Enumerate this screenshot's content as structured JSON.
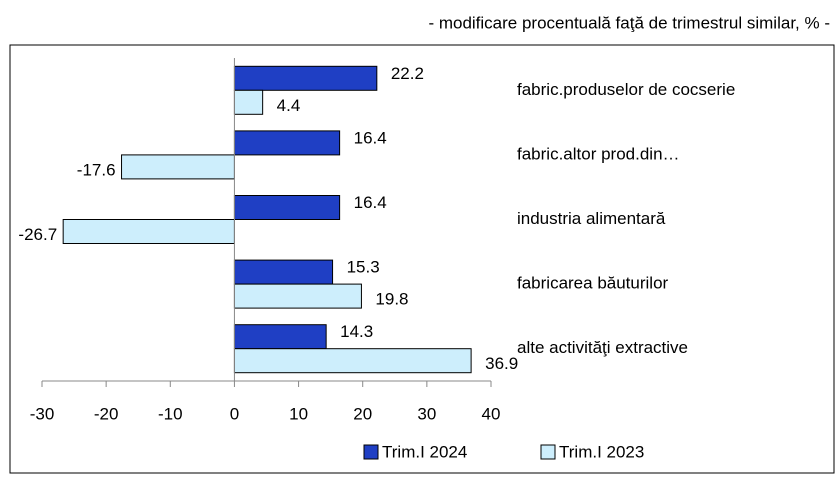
{
  "chart_data": {
    "type": "hbar",
    "subtitle": "- modificare procentuală faţă de trimestrul similar, % -",
    "categories": [
      "fabric.produselor de cocserie",
      "fabric.altor prod.din…",
      "industria alimentară",
      "fabricarea băuturilor",
      "alte activităţi extractive"
    ],
    "series": [
      {
        "name": "Trim.I 2024",
        "color": "#1f3fc4",
        "values": [
          22.2,
          16.4,
          16.4,
          15.3,
          14.3
        ]
      },
      {
        "name": "Trim.I 2023",
        "color": "#cdeefc",
        "values": [
          4.4,
          -17.6,
          -26.7,
          19.8,
          36.9
        ]
      }
    ],
    "xlim": [
      -30,
      40
    ],
    "xticks": [
      -30,
      -20,
      -10,
      0,
      10,
      20,
      30,
      40
    ]
  }
}
